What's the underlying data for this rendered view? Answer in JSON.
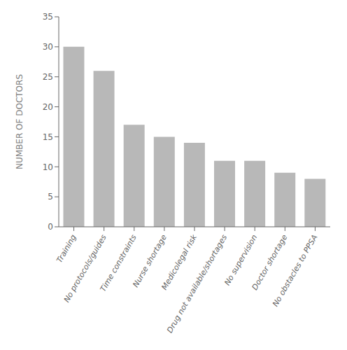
{
  "chart_data": {
    "type": "bar",
    "categories": [
      "Training",
      "No protocols/guides",
      "Time constraints",
      "Nurse shortage",
      "Medicolegal risk",
      "Drug not available/shortages",
      "No supervision",
      "Doctor shortage",
      "No obstacles to PPSA"
    ],
    "values": [
      30,
      26,
      17,
      15,
      14,
      11,
      11,
      9,
      8
    ],
    "color": "#b8b8b8",
    "ylabel": "NUMBER OF DOCTORS",
    "ylim": [
      0,
      35
    ],
    "yticks": [
      0,
      5,
      10,
      15,
      20,
      25,
      30,
      35
    ],
    "grid": false
  }
}
